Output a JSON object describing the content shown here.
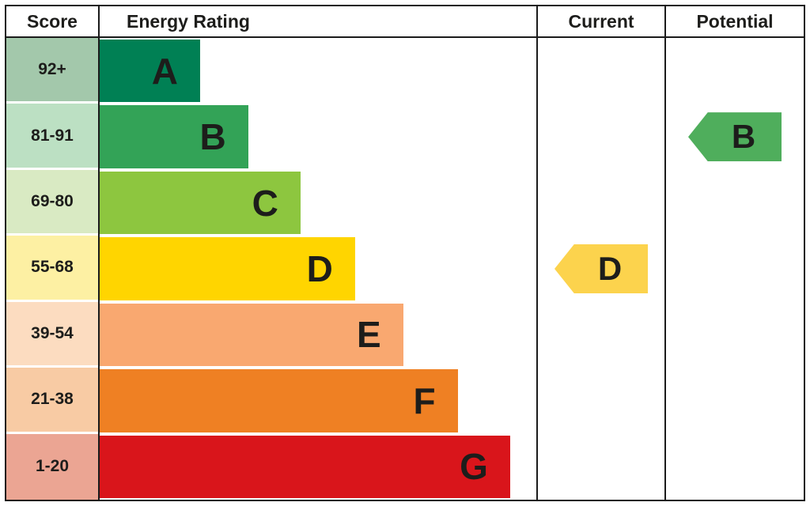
{
  "header": {
    "score": "Score",
    "energy_rating": "Energy Rating",
    "current": "Current",
    "potential": "Potential"
  },
  "chart_data": {
    "type": "bar",
    "description": "EPC energy efficiency rating bands with current and potential ratings",
    "bands": [
      {
        "score": "92+",
        "letter": "A",
        "bar_color": "#008054",
        "score_bg": "#a3c8ab",
        "width_pct": 23
      },
      {
        "score": "81-91",
        "letter": "B",
        "bar_color": "#33a357",
        "score_bg": "#bce0c3",
        "width_pct": 34
      },
      {
        "score": "69-80",
        "letter": "C",
        "bar_color": "#8dc63f",
        "score_bg": "#d9eac3",
        "width_pct": 46
      },
      {
        "score": "55-68",
        "letter": "D",
        "bar_color": "#ffd500",
        "score_bg": "#fdf0a3",
        "width_pct": 58.5
      },
      {
        "score": "39-54",
        "letter": "E",
        "bar_color": "#f9a870",
        "score_bg": "#fcdcc0",
        "width_pct": 69.5
      },
      {
        "score": "21-38",
        "letter": "F",
        "bar_color": "#ef8023",
        "score_bg": "#f8cba4",
        "width_pct": 82
      },
      {
        "score": "1-20",
        "letter": "G",
        "bar_color": "#d9151b",
        "score_bg": "#eba593",
        "width_pct": 94
      }
    ],
    "current": {
      "letter": "D",
      "band_index": 3,
      "color": "#fcd34d"
    },
    "potential": {
      "letter": "B",
      "band_index": 1,
      "color": "#4fae5c"
    }
  }
}
